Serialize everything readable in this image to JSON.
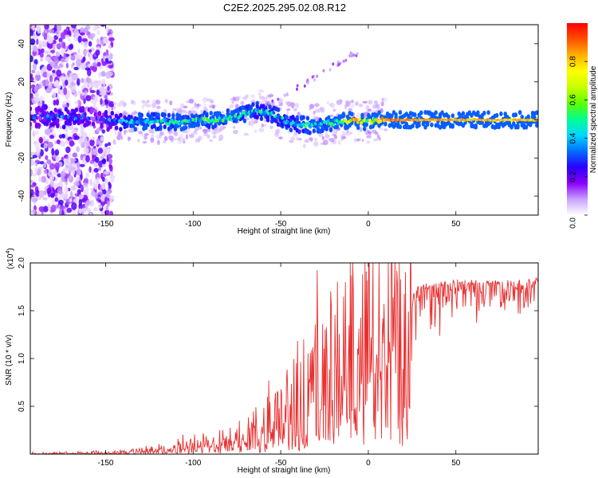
{
  "title": "C2E2.2025.295.02.08.R12",
  "chart_data": [
    {
      "type": "heatmap",
      "name": "spectrogram",
      "xlabel": "Height of straight line (km)",
      "ylabel": "Frequency (Hz)",
      "xlim": [
        -193,
        97
      ],
      "ylim": [
        -50,
        50
      ],
      "xticks": [
        -150,
        -100,
        -50,
        0,
        50
      ],
      "yticks": [
        -40,
        -20,
        0,
        20,
        40
      ],
      "colorbar": {
        "label": "Normalized spectral amplitude",
        "range": [
          0.0,
          1.0
        ],
        "ticks": [
          "0.0",
          "0.2",
          "0.4",
          "0.6",
          "0.8"
        ],
        "colors": [
          "#ffffff",
          "#c8a0ff",
          "#8a00ff",
          "#2a00ff",
          "#0070ff",
          "#00d8ff",
          "#00ff90",
          "#60ff00",
          "#c8ff00",
          "#ffff00",
          "#ffb000",
          "#ff5000",
          "#ff0000"
        ]
      },
      "center_band": [
        {
          "x": -193,
          "y": 1.5,
          "amp": 0.22
        },
        {
          "x": -180,
          "y": 1.0,
          "amp": 0.28
        },
        {
          "x": -168,
          "y": 1.5,
          "amp": 0.3
        },
        {
          "x": -155,
          "y": 1.0,
          "amp": 0.18
        },
        {
          "x": -147,
          "y": -1.0,
          "amp": 0.3
        },
        {
          "x": -130,
          "y": -1.0,
          "amp": 0.42
        },
        {
          "x": -110,
          "y": -1.0,
          "amp": 0.44
        },
        {
          "x": -90,
          "y": 0.0,
          "amp": 0.45
        },
        {
          "x": -75,
          "y": 1.5,
          "amp": 0.44
        },
        {
          "x": -65,
          "y": 5.0,
          "amp": 0.4
        },
        {
          "x": -55,
          "y": 3.0,
          "amp": 0.4
        },
        {
          "x": -45,
          "y": -1.5,
          "amp": 0.4
        },
        {
          "x": -35,
          "y": -3.0,
          "amp": 0.42
        },
        {
          "x": -25,
          "y": -2.0,
          "amp": 0.44
        },
        {
          "x": -15,
          "y": -1.0,
          "amp": 0.5
        },
        {
          "x": -8,
          "y": 0.0,
          "amp": 0.8
        },
        {
          "x": 0,
          "y": -1.0,
          "amp": 0.6
        },
        {
          "x": 5,
          "y": 0.0,
          "amp": 0.7
        },
        {
          "x": 12,
          "y": 0.0,
          "amp": 0.88
        },
        {
          "x": 30,
          "y": 0.0,
          "amp": 0.85
        },
        {
          "x": 60,
          "y": 0.0,
          "amp": 0.82
        },
        {
          "x": 97,
          "y": 0.0,
          "amp": 0.8
        }
      ]
    },
    {
      "type": "line",
      "name": "snr",
      "xlabel": "Height of straight line (km)",
      "ylabel": "SNR (10 * v/v)",
      "multiplier": "(x10",
      "multiplier_exp": "4",
      "xlim": [
        -193,
        97
      ],
      "ylim": [
        0,
        2.0
      ],
      "xticks": [
        -150,
        -100,
        -50,
        0,
        50
      ],
      "yticks": [
        "0.5",
        "1.0",
        "1.5",
        "2.0"
      ],
      "color": "#e83030",
      "envelope": [
        {
          "x": -193,
          "y": 0.0
        },
        {
          "x": -160,
          "y": 0.01
        },
        {
          "x": -140,
          "y": 0.02
        },
        {
          "x": -120,
          "y": 0.05
        },
        {
          "x": -100,
          "y": 0.1
        },
        {
          "x": -80,
          "y": 0.15
        },
        {
          "x": -65,
          "y": 0.25
        },
        {
          "x": -50,
          "y": 0.45
        },
        {
          "x": -35,
          "y": 0.7
        },
        {
          "x": -20,
          "y": 0.95
        },
        {
          "x": -5,
          "y": 1.2
        },
        {
          "x": 10,
          "y": 1.45
        },
        {
          "x": 20,
          "y": 1.6
        },
        {
          "x": 30,
          "y": 1.78
        },
        {
          "x": 50,
          "y": 1.83
        },
        {
          "x": 70,
          "y": 1.83
        },
        {
          "x": 90,
          "y": 1.82
        },
        {
          "x": 97,
          "y": 1.87
        }
      ]
    }
  ]
}
